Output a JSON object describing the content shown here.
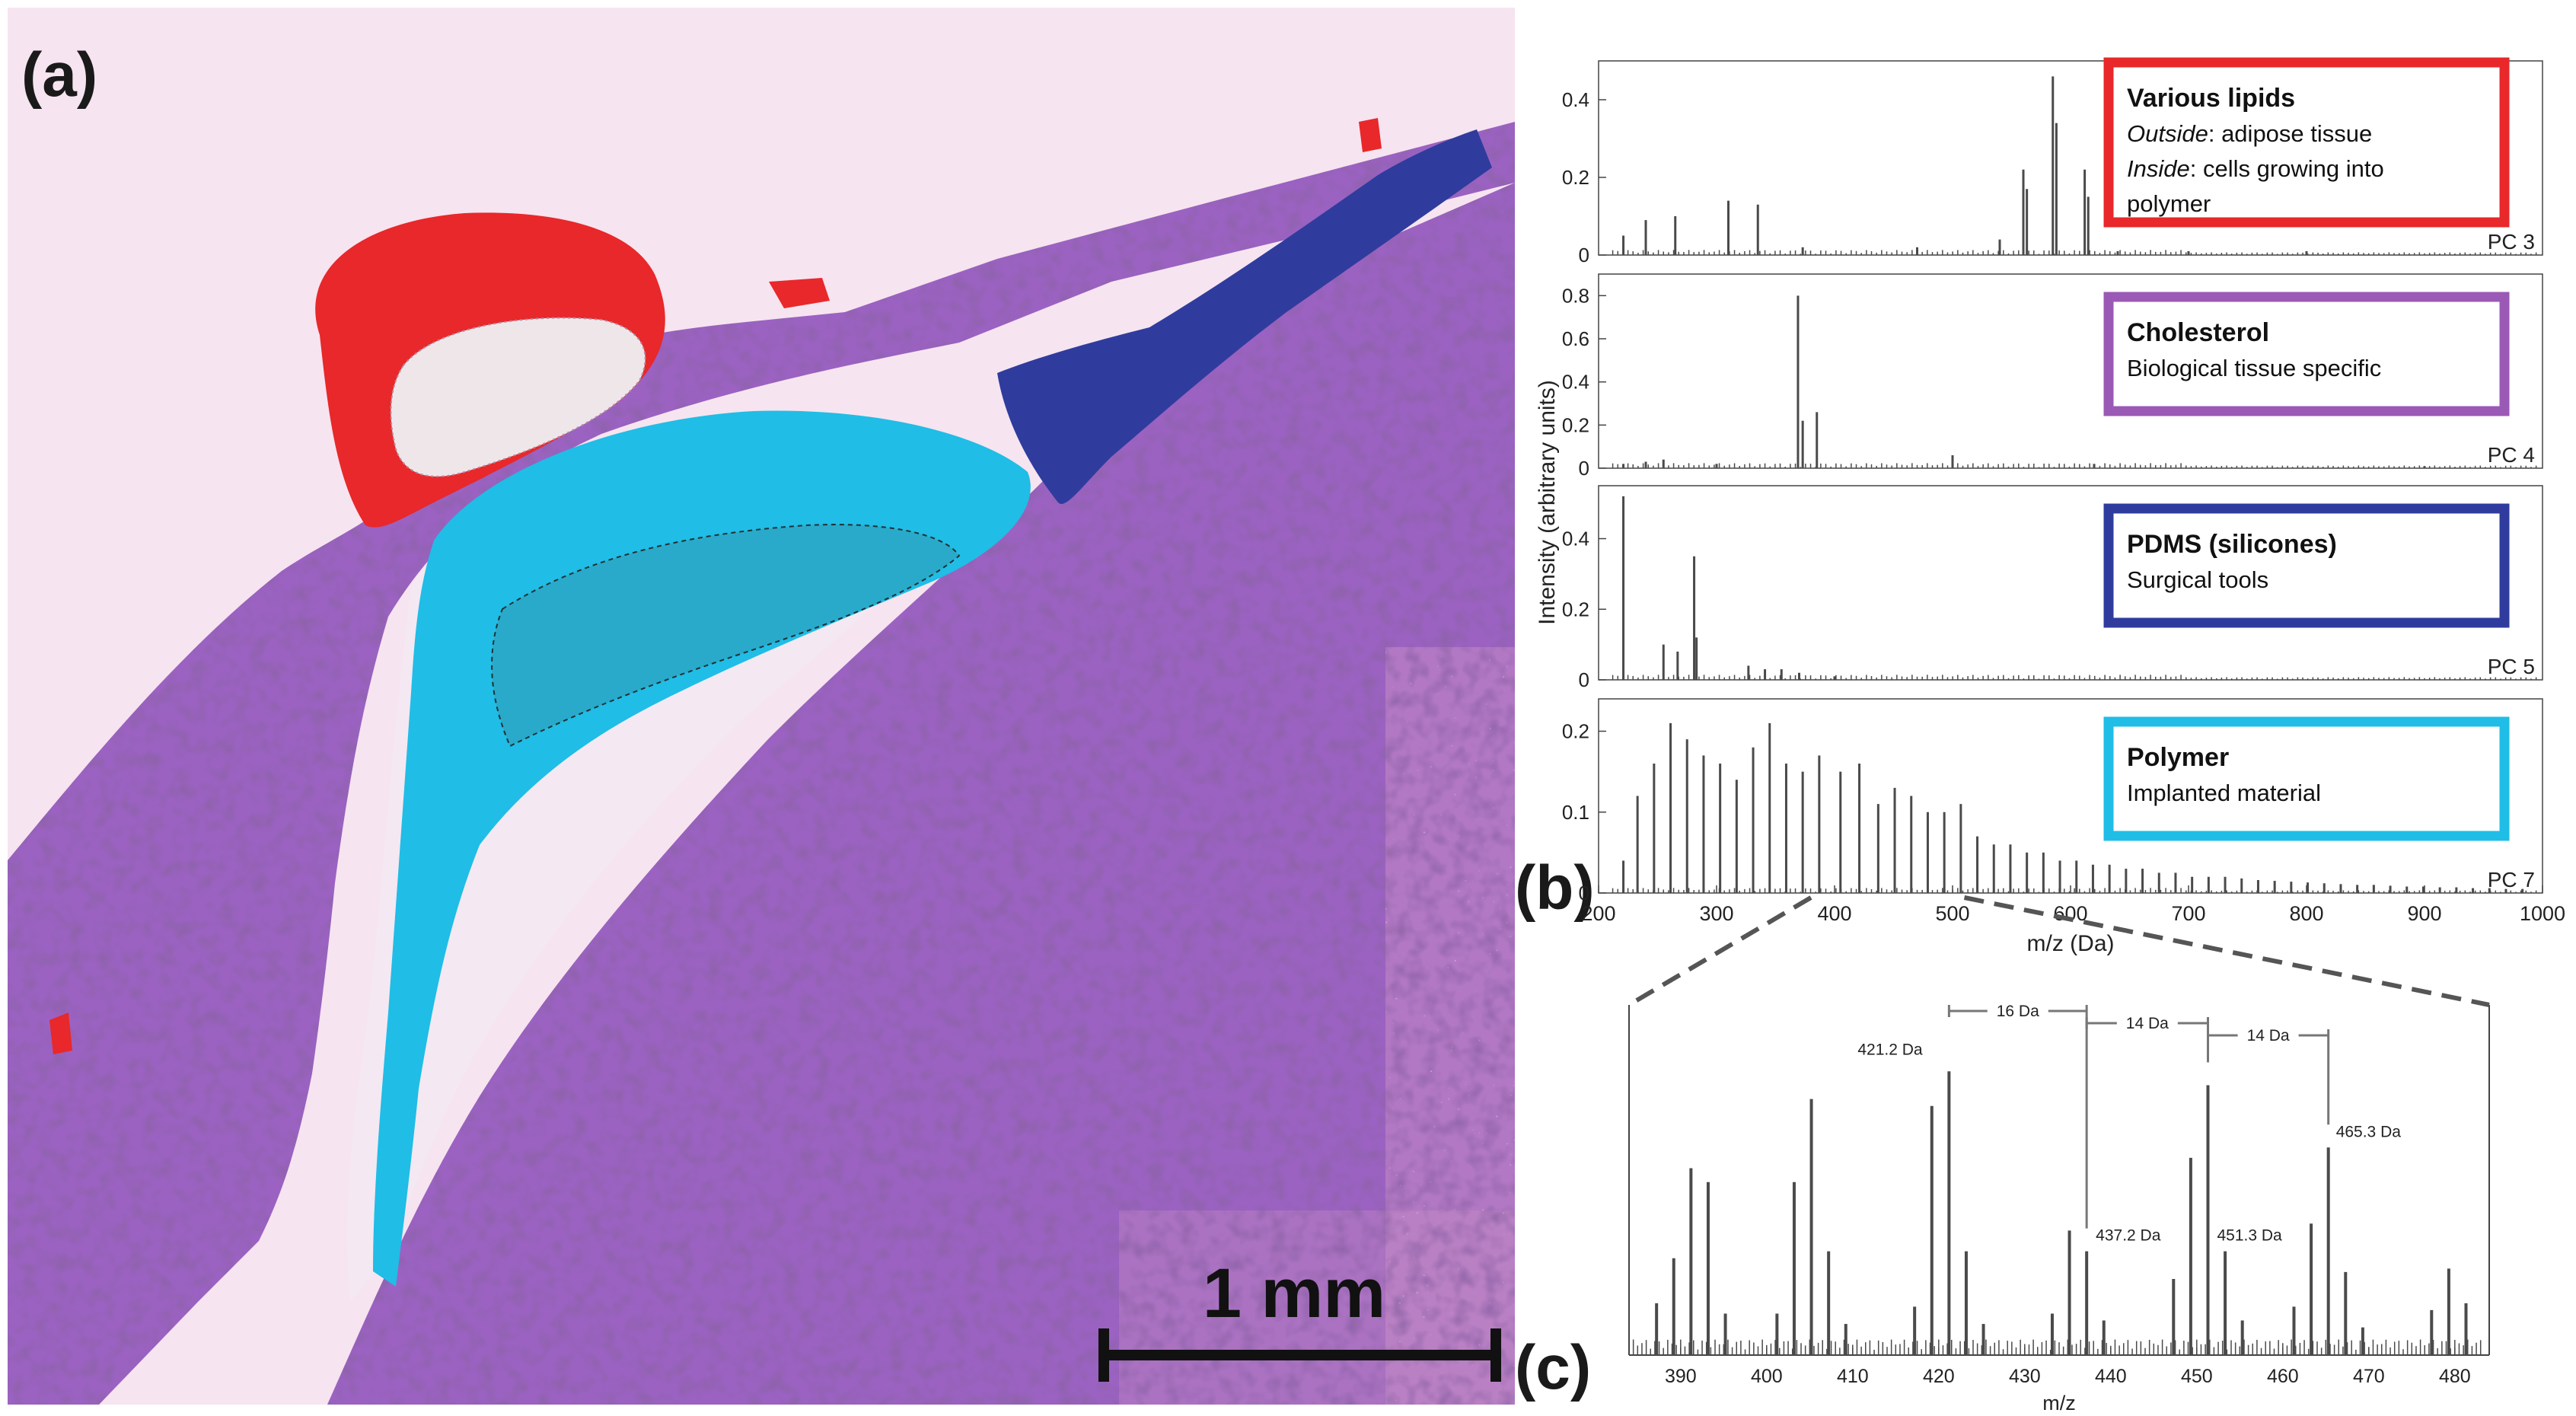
{
  "panel_labels": {
    "a": "(a)",
    "b": "(b)",
    "c": "(c)"
  },
  "scale_bar": {
    "label": "1 mm"
  },
  "colors": {
    "tissue": "#9b62c2",
    "tissue_dark": "#6f3f93",
    "background": "#f6e4f0",
    "lipids": "#e8282a",
    "cholesterol": "#9b59b6",
    "pdms": "#2f3c9e",
    "polymer": "#20bde6",
    "spectrum": "#4a4a4a"
  },
  "chart_data": [
    {
      "type": "line",
      "ylabel": "Intensity (arbitrary units)",
      "xlabel": "m/z (Da)",
      "xlim": [
        200,
        1000
      ],
      "x_ticks": [
        200,
        300,
        400,
        500,
        600,
        700,
        800,
        900,
        1000
      ],
      "series": [
        {
          "name": "PC 3",
          "ylim": [
            0,
            0.5
          ],
          "y_ticks": [
            0,
            0.2,
            0.4
          ],
          "peaks": [
            [
              221,
              0.05
            ],
            [
              240,
              0.09
            ],
            [
              265,
              0.1
            ],
            [
              310,
              0.14
            ],
            [
              335,
              0.13
            ],
            [
              373,
              0.02
            ],
            [
              470,
              0.02
            ],
            [
              540,
              0.04
            ],
            [
              560,
              0.22
            ],
            [
              563,
              0.17
            ],
            [
              585,
              0.46
            ],
            [
              588,
              0.34
            ],
            [
              612,
              0.22
            ],
            [
              615,
              0.15
            ],
            [
              640,
              0.01
            ],
            [
              700,
              0.01
            ],
            [
              800,
              0.01
            ]
          ],
          "box": {
            "title": "Various lipids",
            "lines": [
              [
                "Outside",
                ": adipose tissue"
              ],
              [
                "Inside",
                ": cells growing into"
              ],
              [
                "",
                "polymer"
              ]
            ],
            "color": "#e8282a"
          }
        },
        {
          "name": "PC 4",
          "ylim": [
            0,
            0.9
          ],
          "y_ticks": [
            0,
            0.2,
            0.4,
            0.6,
            0.8
          ],
          "peaks": [
            [
              221,
              0.02
            ],
            [
              240,
              0.03
            ],
            [
              255,
              0.04
            ],
            [
              300,
              0.02
            ],
            [
              369,
              0.8
            ],
            [
              373,
              0.22
            ],
            [
              385,
              0.26
            ],
            [
              500,
              0.06
            ],
            [
              620,
              0.02
            ],
            [
              900,
              0.01
            ]
          ],
          "box": {
            "title": "Cholesterol",
            "lines": [
              [
                "",
                "Biological tissue specific"
              ]
            ],
            "color": "#9b59b6"
          }
        },
        {
          "name": "PC 5",
          "ylim": [
            0,
            0.55
          ],
          "y_ticks": [
            0,
            0.2,
            0.4
          ],
          "peaks": [
            [
              221,
              0.52
            ],
            [
              255,
              0.1
            ],
            [
              267,
              0.08
            ],
            [
              281,
              0.35
            ],
            [
              283,
              0.12
            ],
            [
              327,
              0.04
            ],
            [
              341,
              0.03
            ],
            [
              355,
              0.03
            ],
            [
              370,
              0.02
            ],
            [
              400,
              0.01
            ]
          ],
          "box": {
            "title": "PDMS (silicones)",
            "lines": [
              [
                "",
                "Surgical tools"
              ]
            ],
            "color": "#2f3c9e"
          }
        },
        {
          "name": "PC 7",
          "ylim": [
            0,
            0.24
          ],
          "y_ticks": [
            0,
            0.1,
            0.2
          ],
          "peaks": [
            [
              221,
              0.04
            ],
            [
              233,
              0.12
            ],
            [
              247,
              0.16
            ],
            [
              261,
              0.21
            ],
            [
              275,
              0.19
            ],
            [
              289,
              0.17
            ],
            [
              303,
              0.16
            ],
            [
              317,
              0.14
            ],
            [
              331,
              0.18
            ],
            [
              345,
              0.21
            ],
            [
              359,
              0.16
            ],
            [
              373,
              0.15
            ],
            [
              387,
              0.17
            ],
            [
              405,
              0.15
            ],
            [
              421,
              0.16
            ],
            [
              437,
              0.11
            ],
            [
              451,
              0.13
            ],
            [
              465,
              0.12
            ],
            [
              479,
              0.1
            ],
            [
              493,
              0.1
            ],
            [
              507,
              0.11
            ],
            [
              521,
              0.07
            ],
            [
              535,
              0.06
            ],
            [
              549,
              0.06
            ],
            [
              563,
              0.05
            ],
            [
              577,
              0.05
            ],
            [
              591,
              0.04
            ],
            [
              605,
              0.04
            ],
            [
              619,
              0.035
            ],
            [
              633,
              0.035
            ],
            [
              647,
              0.03
            ],
            [
              661,
              0.03
            ],
            [
              675,
              0.025
            ],
            [
              689,
              0.025
            ],
            [
              703,
              0.02
            ],
            [
              717,
              0.02
            ],
            [
              731,
              0.02
            ],
            [
              745,
              0.018
            ],
            [
              759,
              0.016
            ],
            [
              773,
              0.015
            ],
            [
              787,
              0.014
            ],
            [
              801,
              0.013
            ],
            [
              815,
              0.012
            ],
            [
              829,
              0.011
            ],
            [
              843,
              0.01
            ],
            [
              857,
              0.01
            ],
            [
              871,
              0.009
            ],
            [
              885,
              0.008
            ],
            [
              899,
              0.008
            ],
            [
              913,
              0.007
            ],
            [
              927,
              0.007
            ],
            [
              941,
              0.006
            ],
            [
              955,
              0.006
            ],
            [
              969,
              0.005
            ],
            [
              983,
              0.005
            ]
          ],
          "box": {
            "title": "Polymer",
            "lines": [
              [
                "",
                "Implanted material"
              ]
            ],
            "color": "#20bde6"
          }
        }
      ]
    },
    {
      "type": "line",
      "xlabel": "m/z",
      "xlim": [
        384,
        484
      ],
      "x_ticks": [
        390,
        400,
        410,
        420,
        430,
        440,
        450,
        460,
        470,
        480
      ],
      "ylim": [
        0,
        1
      ],
      "peaks": [
        [
          387.2,
          0.15
        ],
        [
          389.2,
          0.28
        ],
        [
          391.2,
          0.54
        ],
        [
          393.2,
          0.5
        ],
        [
          395.2,
          0.12
        ],
        [
          401.2,
          0.12
        ],
        [
          403.2,
          0.5
        ],
        [
          405.2,
          0.74
        ],
        [
          407.2,
          0.3
        ],
        [
          409.2,
          0.09
        ],
        [
          417.2,
          0.14
        ],
        [
          419.2,
          0.72
        ],
        [
          421.2,
          0.82
        ],
        [
          423.2,
          0.3
        ],
        [
          425.2,
          0.09
        ],
        [
          433.2,
          0.12
        ],
        [
          435.2,
          0.36
        ],
        [
          437.2,
          0.3
        ],
        [
          439.2,
          0.1
        ],
        [
          447.3,
          0.22
        ],
        [
          449.3,
          0.57
        ],
        [
          451.3,
          0.78
        ],
        [
          453.3,
          0.3
        ],
        [
          455.3,
          0.1
        ],
        [
          461.3,
          0.14
        ],
        [
          463.3,
          0.38
        ],
        [
          465.3,
          0.6
        ],
        [
          467.3,
          0.24
        ],
        [
          469.3,
          0.08
        ],
        [
          477.3,
          0.13
        ],
        [
          479.3,
          0.25
        ],
        [
          481.3,
          0.15
        ]
      ],
      "annotations": [
        {
          "text": "421.2 Da",
          "x": 421.2
        },
        {
          "text": "437.2 Da",
          "x": 437.2
        },
        {
          "text": "451.3 Da",
          "x": 451.3
        },
        {
          "text": "465.3 Da",
          "x": 465.3
        }
      ],
      "brackets": [
        {
          "text": "16 Da",
          "x1": 421.2,
          "x2": 437.2
        },
        {
          "text": "14 Da",
          "x1": 437.2,
          "x2": 451.3
        },
        {
          "text": "14 Da",
          "x1": 451.3,
          "x2": 465.3
        }
      ]
    }
  ]
}
